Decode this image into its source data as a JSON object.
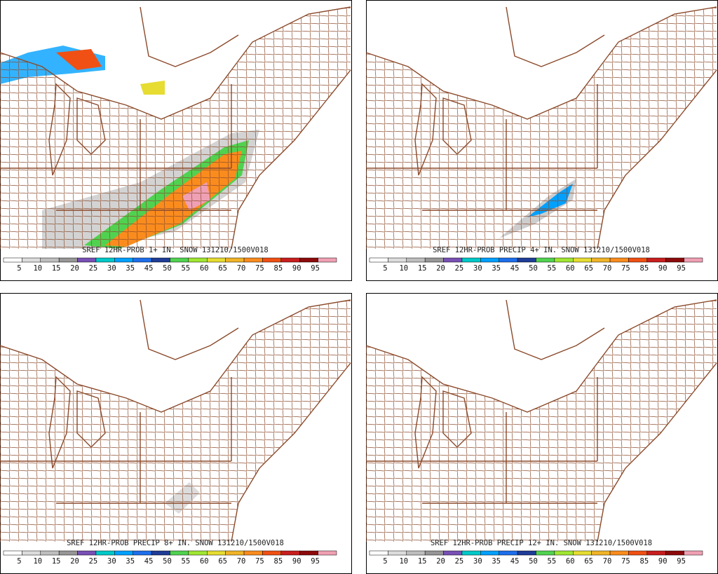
{
  "panels": [
    {
      "title": "SREF 12HR-PROB 1+ IN. SNOW 131210/1500V018"
    },
    {
      "title": "SREF 12HR-PROB PRECIP 4+ IN. SNOW 131210/1500V018"
    },
    {
      "title": "SREF 12HR-PROB PRECIP 8+ IN. SNOW 131210/1500V018"
    },
    {
      "title": "SREF 12HR-PROB PRECIP 12+ IN. SNOW 131210/1500V018"
    }
  ],
  "colorbar": {
    "labels": [
      5,
      10,
      15,
      20,
      25,
      30,
      35,
      45,
      50,
      55,
      60,
      65,
      70,
      75,
      85,
      90,
      95
    ],
    "colors": [
      "#ffffff",
      "#dcdcdc",
      "#bebebe",
      "#969696",
      "#7850b4",
      "#00c8c8",
      "#00a0ff",
      "#1e6eeb",
      "#1e3c96",
      "#50d250",
      "#a0e632",
      "#e6dc32",
      "#f0b428",
      "#fa8c1e",
      "#f05014",
      "#c81e1e",
      "#8c0a0a",
      "#f0a0b4"
    ]
  }
}
